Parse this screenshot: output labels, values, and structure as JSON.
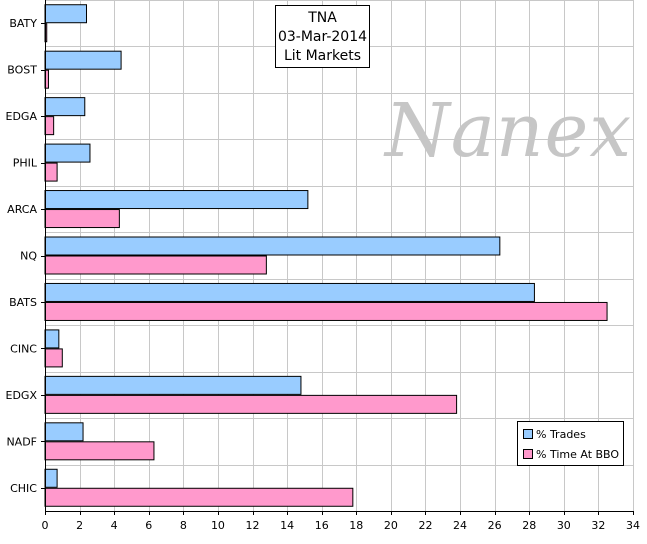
{
  "chart_data": {
    "type": "bar",
    "orientation": "horizontal",
    "title_lines": [
      "TNA",
      "03-Mar-2014",
      "Lit Markets"
    ],
    "watermark": "Nanex",
    "categories": [
      "BATY",
      "BOST",
      "EDGA",
      "PHIL",
      "ARCA",
      "NQ",
      "BATS",
      "CINC",
      "EDGX",
      "NADF",
      "CHIC"
    ],
    "series": [
      {
        "name": "% Trades",
        "color": "#99ccff",
        "values": [
          2.4,
          4.4,
          2.3,
          2.6,
          15.2,
          26.3,
          28.3,
          0.8,
          14.8,
          2.2,
          0.7
        ]
      },
      {
        "name": "% Time At BBO",
        "color": "#ff99cc",
        "values": [
          0.1,
          0.2,
          0.5,
          0.7,
          4.3,
          12.8,
          32.5,
          1.0,
          23.8,
          6.3,
          17.8
        ]
      }
    ],
    "xlim": [
      0,
      34
    ],
    "xticks": [
      0,
      2,
      4,
      6,
      8,
      10,
      12,
      14,
      16,
      18,
      20,
      22,
      24,
      26,
      28,
      30,
      32,
      34
    ],
    "grid": true,
    "legend_position": "bottom-right",
    "xlabel": "",
    "ylabel": ""
  }
}
